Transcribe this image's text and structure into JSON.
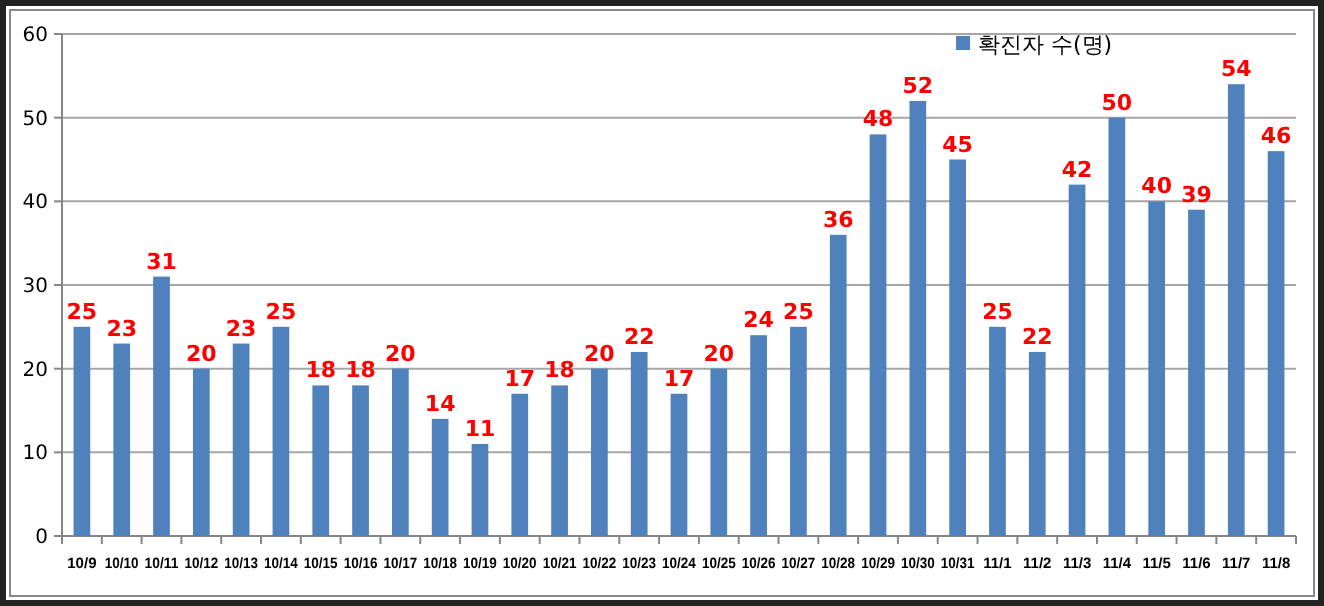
{
  "chart_data": {
    "type": "bar",
    "categories": [
      "10/9",
      "10/10",
      "10/11",
      "10/12",
      "10/13",
      "10/14",
      "10/15",
      "10/16",
      "10/17",
      "10/18",
      "10/19",
      "10/20",
      "10/21",
      "10/22",
      "10/23",
      "10/24",
      "10/25",
      "10/26",
      "10/27",
      "10/28",
      "10/29",
      "10/30",
      "10/31",
      "11/1",
      "11/2",
      "11/3",
      "11/4",
      "11/5",
      "11/6",
      "11/7",
      "11/8"
    ],
    "series": [
      {
        "name": "확진자 수(명)",
        "color": "#4f81bd",
        "values": [
          25,
          23,
          31,
          20,
          23,
          25,
          18,
          18,
          20,
          14,
          11,
          17,
          18,
          20,
          22,
          17,
          20,
          24,
          25,
          36,
          48,
          52,
          45,
          25,
          22,
          42,
          50,
          40,
          39,
          54,
          46
        ]
      }
    ],
    "ylim": [
      0,
      60
    ],
    "yticks": [
      0,
      10,
      20,
      30,
      40,
      50,
      60
    ],
    "grid": "y",
    "legend": "top right",
    "data_labels": true
  }
}
